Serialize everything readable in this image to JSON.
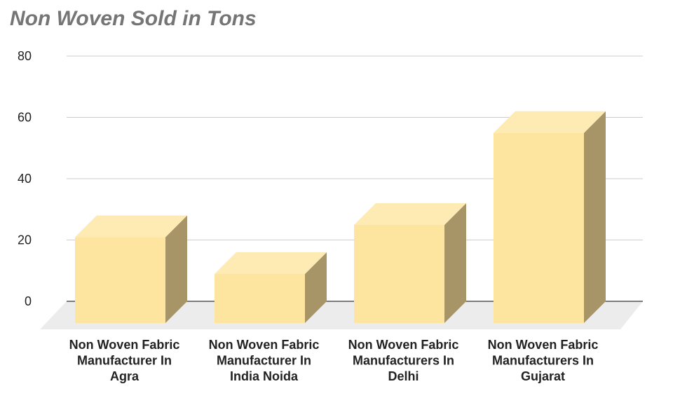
{
  "chart_data": {
    "type": "bar",
    "title": "Non Woven Sold in Tons",
    "xlabel": "",
    "ylabel": "",
    "categories": [
      [
        "Non Woven Fabric",
        "Manufacturer In",
        "Agra"
      ],
      [
        "Non Woven Fabric",
        "Manufacturer In",
        "India Noida"
      ],
      [
        "Non Woven Fabric",
        "Manufacturers In",
        "Delhi"
      ],
      [
        "Non Woven Fabric",
        "Manufacturers In",
        "Gujarat"
      ]
    ],
    "values": [
      28,
      16,
      32,
      62
    ],
    "ylim": [
      0,
      80
    ],
    "yticks": [
      "0",
      "20",
      "40",
      "60",
      "80"
    ],
    "grid": true,
    "style": "3d",
    "colors": {
      "front": "#fde59f",
      "top": "#feeab3",
      "side": "#a89567",
      "floor": "#ececec",
      "grid": "#cccccc",
      "baseline": "#333333"
    }
  }
}
